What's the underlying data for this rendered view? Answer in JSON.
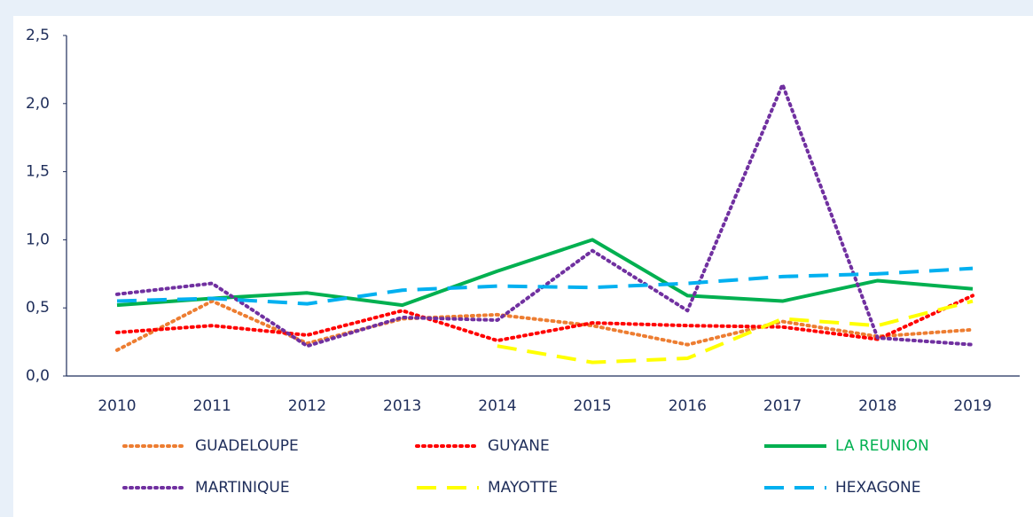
{
  "chart_data": {
    "type": "line",
    "categories": [
      "2010",
      "2011",
      "2012",
      "2013",
      "2014",
      "2015",
      "2016",
      "2017",
      "2018",
      "2019"
    ],
    "ylim": [
      0,
      2.5
    ],
    "yticks": [
      {
        "value": 0,
        "label": "0,0"
      },
      {
        "value": 0.5,
        "label": "0,5"
      },
      {
        "value": 1,
        "label": "1,0"
      },
      {
        "value": 1.5,
        "label": "1,5"
      },
      {
        "value": 2,
        "label": "2,0"
      },
      {
        "value": 2.5,
        "label": "2,5"
      }
    ],
    "series": [
      {
        "name": "GUADELOUPE",
        "color": "#ed7d31",
        "dash": "dotted",
        "values": [
          0.19,
          0.55,
          0.24,
          0.42,
          0.45,
          0.37,
          0.23,
          0.4,
          0.29,
          0.34
        ]
      },
      {
        "name": "GUYANE",
        "color": "#ff0000",
        "dash": "dotted",
        "values": [
          0.32,
          0.37,
          0.3,
          0.48,
          0.26,
          0.39,
          0.37,
          0.36,
          0.27,
          0.59
        ]
      },
      {
        "name": "LA REUNION",
        "color": "#00b050",
        "dash": "solid",
        "values": [
          0.52,
          0.57,
          0.61,
          0.52,
          0.77,
          1.0,
          0.59,
          0.55,
          0.7,
          0.64
        ]
      },
      {
        "name": "MARTINIQUE",
        "color": "#7030a0",
        "dash": "dotted",
        "values": [
          0.6,
          0.68,
          0.22,
          0.43,
          0.41,
          0.92,
          0.48,
          2.14,
          0.28,
          0.23
        ]
      },
      {
        "name": "MAYOTTE",
        "color": "#ffff00",
        "dash": "dashed",
        "values": [
          null,
          null,
          null,
          null,
          0.22,
          0.1,
          0.13,
          0.42,
          0.37,
          0.55
        ]
      },
      {
        "name": "HEXAGONE",
        "color": "#00b0f0",
        "dash": "dashed",
        "values": [
          0.55,
          0.57,
          0.53,
          0.63,
          0.66,
          0.65,
          0.68,
          0.73,
          0.75,
          0.79
        ]
      }
    ]
  }
}
